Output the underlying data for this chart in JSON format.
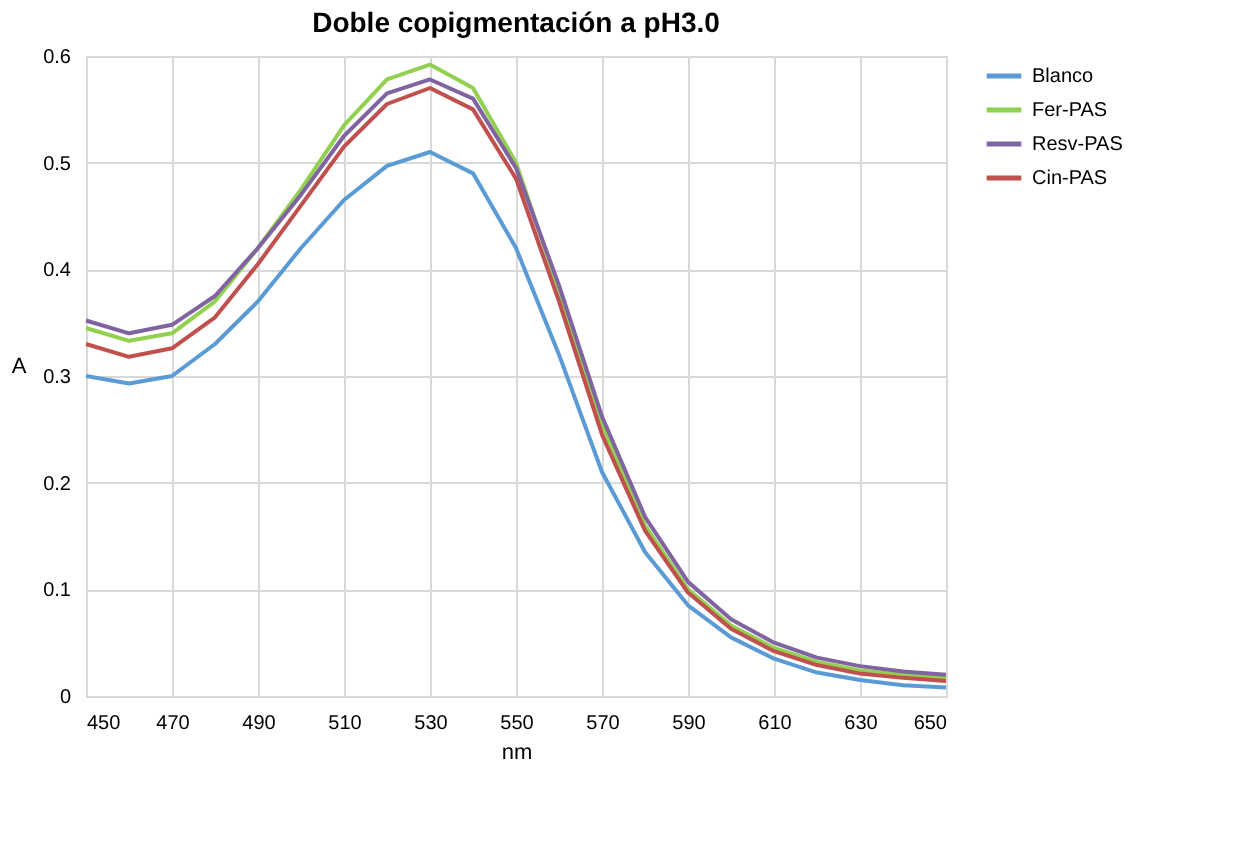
{
  "chart_data": {
    "type": "line",
    "title": "Doble copigmentación a pH3.0",
    "xlabel": "nm",
    "ylabel": "A",
    "x": [
      450,
      460,
      470,
      480,
      490,
      500,
      510,
      520,
      530,
      540,
      550,
      560,
      570,
      580,
      590,
      600,
      610,
      620,
      630,
      640,
      650
    ],
    "series": [
      {
        "name": "Blanco",
        "color": "#5b9bd5",
        "values": [
          0.3,
          0.293,
          0.3,
          0.33,
          0.37,
          0.42,
          0.465,
          0.497,
          0.51,
          0.49,
          0.42,
          0.32,
          0.21,
          0.135,
          0.085,
          0.055,
          0.035,
          0.022,
          0.015,
          0.01,
          0.008
        ]
      },
      {
        "name": "Fer-PAS",
        "color": "#92d050",
        "values": [
          0.345,
          0.333,
          0.34,
          0.37,
          0.42,
          0.475,
          0.535,
          0.578,
          0.592,
          0.57,
          0.5,
          0.38,
          0.255,
          0.16,
          0.1,
          0.066,
          0.045,
          0.032,
          0.024,
          0.02,
          0.017
        ]
      },
      {
        "name": "Resv-PAS",
        "color": "#8064a2",
        "values": [
          0.352,
          0.34,
          0.348,
          0.375,
          0.42,
          0.47,
          0.525,
          0.565,
          0.578,
          0.56,
          0.495,
          0.385,
          0.262,
          0.168,
          0.107,
          0.072,
          0.05,
          0.036,
          0.028,
          0.023,
          0.02
        ]
      },
      {
        "name": "Cin-PAS",
        "color": "#c0504d",
        "values": [
          0.33,
          0.318,
          0.326,
          0.355,
          0.405,
          0.46,
          0.515,
          0.555,
          0.57,
          0.55,
          0.485,
          0.37,
          0.245,
          0.155,
          0.097,
          0.063,
          0.042,
          0.029,
          0.021,
          0.017,
          0.014
        ]
      }
    ],
    "xlim": [
      450,
      650
    ],
    "xticks": [
      450,
      470,
      490,
      510,
      530,
      550,
      570,
      590,
      610,
      630,
      650
    ],
    "ylim": [
      0,
      0.6
    ],
    "yticks": [
      0,
      0.1,
      0.2,
      0.3,
      0.4,
      0.5,
      0.6
    ],
    "grid": true,
    "legend": "right",
    "marker": "none",
    "line_style": "solid"
  }
}
